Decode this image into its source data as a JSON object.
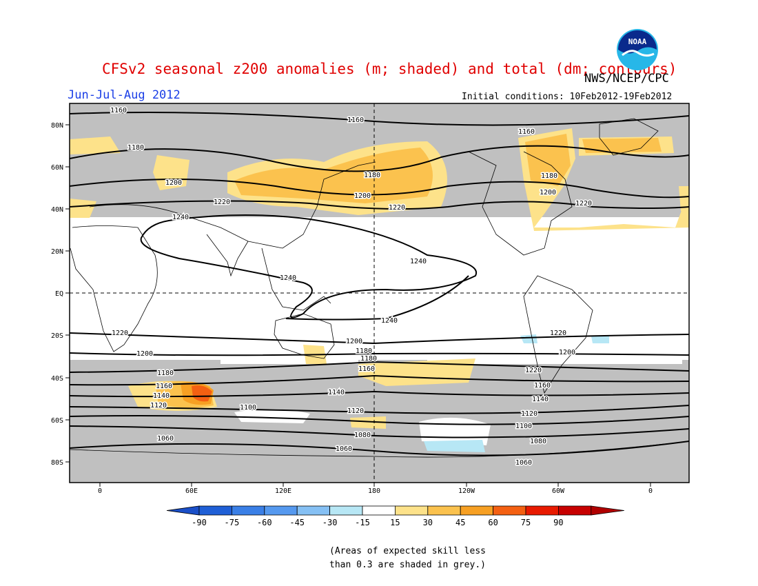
{
  "title": "CFSv2 seasonal z200 anomalies (m; shaded) and total (dm; contours)",
  "agency": "NWS/NCEP/CPC",
  "logo_text": "NOAA",
  "period": "Jun-Jul-Aug 2012",
  "initial_conditions": "Initial conditions: 10Feb2012-19Feb2012",
  "note_line1": "(Areas of expected skill less",
  "note_line2": "than 0.3 are shaded in grey.)",
  "lat_labels": [
    "80N",
    "60N",
    "40N",
    "20N",
    "EQ",
    "20S",
    "40S",
    "60S",
    "80S"
  ],
  "lon_labels": [
    "0",
    "60E",
    "120E",
    "180",
    "120W",
    "60W",
    "0"
  ],
  "colorbar": {
    "labels": [
      "-90",
      "-75",
      "-60",
      "-45",
      "-30",
      "-15",
      "15",
      "30",
      "45",
      "60",
      "75",
      "90"
    ],
    "colors": [
      "#1f5fd6",
      "#3a7fe6",
      "#5599ef",
      "#85c0f4",
      "#b7e7f5",
      "#ffffff",
      "#fde28a",
      "#fbc24e",
      "#f7a023",
      "#f46012",
      "#e81a00",
      "#c70000"
    ],
    "left_arrow_color": "#1a4fc8",
    "right_arrow_color": "#b00000"
  },
  "contour_labels": [
    "1160",
    "1160",
    "1180",
    "1200",
    "1220",
    "1240",
    "1180",
    "1200",
    "1220",
    "1240",
    "1240",
    "1240",
    "1160",
    "1180",
    "1200",
    "1220",
    "1220",
    "1200",
    "1220",
    "1200",
    "1180",
    "1160",
    "1180",
    "1200",
    "1220",
    "1180",
    "1160",
    "1140",
    "1120",
    "1160",
    "1140",
    "1120",
    "1100",
    "1080",
    "1060",
    "1140",
    "1120",
    "1100",
    "1080",
    "1060",
    "1060"
  ]
}
